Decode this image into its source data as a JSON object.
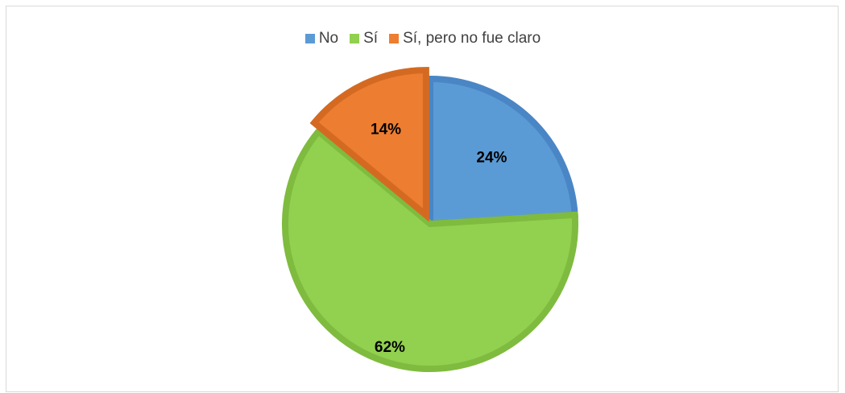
{
  "chart_data": {
    "type": "pie",
    "title": "",
    "categories": [
      "No",
      "Sí",
      "Sí, pero no fue claro"
    ],
    "values": [
      24,
      62,
      14
    ],
    "labels": [
      "24%",
      "62%",
      "14%"
    ],
    "colors": [
      "#5b9bd5",
      "#92d050",
      "#ed7d31"
    ],
    "edge_colors": [
      "#4a86c5",
      "#7fbb3f",
      "#d46a22"
    ],
    "legend_position": "top",
    "start_angle_deg": 0,
    "direction": "clockwise",
    "exploded_slice": "Sí, pero no fue claro"
  }
}
